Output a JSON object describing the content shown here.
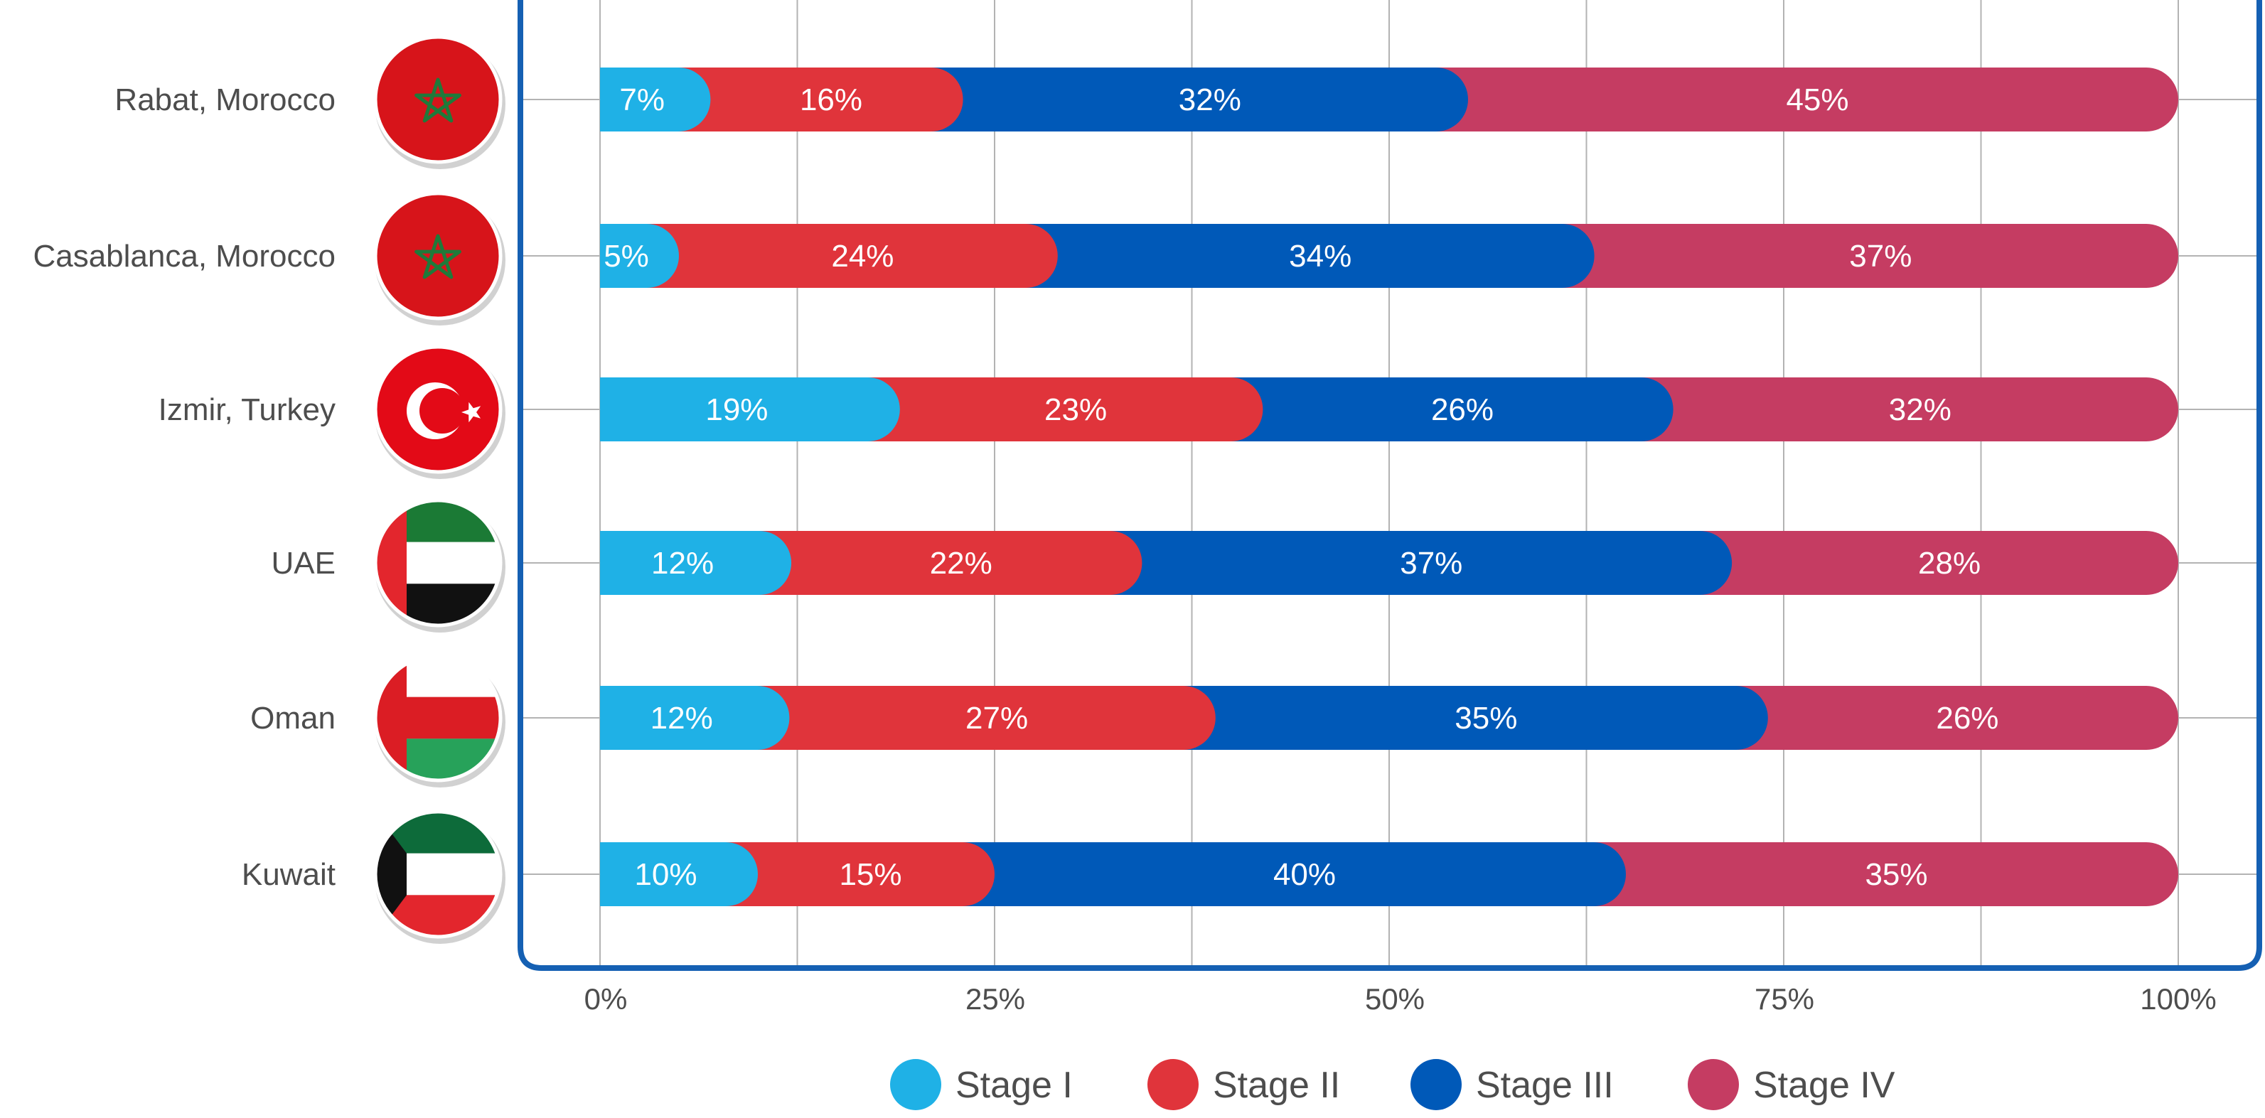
{
  "chart_data": {
    "type": "bar",
    "orientation": "horizontal",
    "stacked": true,
    "categories": [
      "Rabat, Morocco",
      "Casablanca, Morocco",
      "Izmir, Turkey",
      "UAE",
      "Oman",
      "Kuwait"
    ],
    "flags": [
      "morocco",
      "morocco",
      "turkey",
      "uae",
      "oman",
      "kuwait"
    ],
    "series": [
      {
        "name": "Stage I",
        "color": "#1fb1e6",
        "values": [
          7,
          5,
          19,
          12,
          12,
          10
        ]
      },
      {
        "name": "Stage II",
        "color": "#e0343b",
        "values": [
          16,
          24,
          23,
          22,
          27,
          15
        ]
      },
      {
        "name": "Stage III",
        "color": "#0059b8",
        "values": [
          32,
          34,
          26,
          37,
          35,
          40
        ]
      },
      {
        "name": "Stage IV",
        "color": "#c53c62",
        "values": [
          45,
          37,
          32,
          28,
          26,
          35
        ]
      }
    ],
    "value_suffix": "%",
    "xlim": [
      0,
      100
    ],
    "xticks": [
      "0%",
      "25%",
      "50%",
      "75%",
      "100%"
    ],
    "grid": true,
    "legend_position": "bottom",
    "frame_color": "#1560b3"
  }
}
